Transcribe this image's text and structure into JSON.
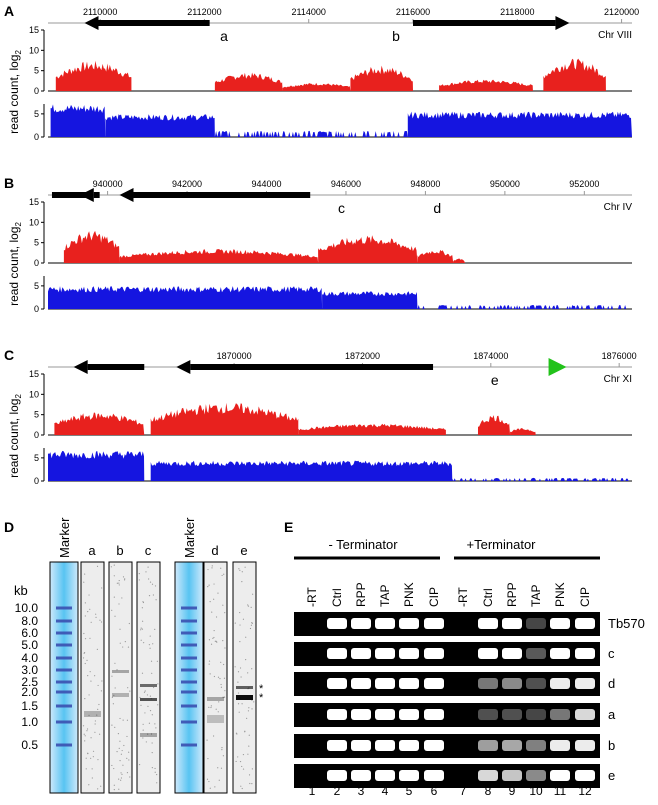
{
  "ylabel": "read count, log",
  "ylabel_sub": "2",
  "panels": [
    {
      "letter": "A",
      "chr": "Chr VIII",
      "ticks": [
        "2110000",
        "2112000",
        "2114000",
        "2116000",
        "2118000",
        "2120000"
      ],
      "xrange": [
        2109000,
        2120200
      ],
      "yticks": [
        "0",
        "5",
        "10",
        "15"
      ],
      "yticks_blue": [
        "0",
        "5"
      ],
      "peaks": [
        {
          "label": "a",
          "x": 2112300
        },
        {
          "label": "b",
          "x": 2115600
        }
      ],
      "genes": [
        {
          "from": 2112100,
          "to": 2109700,
          "dir": "left"
        },
        {
          "from": 2116000,
          "to": 2119000,
          "dir": "right"
        }
      ],
      "red_segments": [
        [
          2109150,
          2110600,
          6.5
        ],
        [
          2112200,
          2113500,
          4
        ],
        [
          2113500,
          2114800,
          1.8
        ],
        [
          2114800,
          2116000,
          5.5
        ],
        [
          2116500,
          2118300,
          2.5
        ],
        [
          2118500,
          2119700,
          7
        ]
      ],
      "blue_segments": [
        [
          2109050,
          2110100,
          6.5
        ],
        [
          2110100,
          2112200,
          4.5
        ],
        [
          2112200,
          2115900,
          1.2
        ],
        [
          2115900,
          2120200,
          5
        ]
      ]
    },
    {
      "letter": "B",
      "chr": "Chr IV",
      "ticks": [
        "940000",
        "942000",
        "944000",
        "946000",
        "948000",
        "950000",
        "952000"
      ],
      "xrange": [
        938500,
        953200
      ],
      "yticks": [
        "0",
        "5",
        "10",
        "15"
      ],
      "yticks_blue": [
        "0",
        "5"
      ],
      "peaks": [
        {
          "label": "c",
          "x": 945800
        },
        {
          "label": "d",
          "x": 948200
        }
      ],
      "genes": [
        {
          "from": 939500,
          "to": 938600,
          "dir": "none"
        },
        {
          "from": 939800,
          "to": 939300,
          "dir": "left"
        },
        {
          "from": 945100,
          "to": 940300,
          "dir": "left"
        }
      ],
      "red_segments": [
        [
          938900,
          940300,
          7
        ],
        [
          940300,
          945300,
          3
        ],
        [
          945300,
          947800,
          6
        ],
        [
          947800,
          948700,
          3
        ],
        [
          948700,
          949000,
          1
        ]
      ],
      "blue_segments": [
        [
          938500,
          945400,
          4.5
        ],
        [
          945400,
          947800,
          3.5
        ],
        [
          947800,
          953200,
          0.8
        ]
      ]
    },
    {
      "letter": "C",
      "chr": "Chr XI",
      "ticks": [
        "1870000",
        "1872000",
        "1874000",
        "1876000"
      ],
      "xrange": [
        1867100,
        1876200
      ],
      "yticks": [
        "0",
        "5",
        "10",
        "15"
      ],
      "yticks_blue": [
        "0",
        "5"
      ],
      "peaks": [
        {
          "label": "e",
          "x": 1874000
        }
      ],
      "genes": [
        {
          "from": 1868600,
          "to": 1867500,
          "dir": "left"
        },
        {
          "from": 1873100,
          "to": 1869100,
          "dir": "left"
        },
        {
          "from": 1874900,
          "to": 1875200,
          "dir": "right-green"
        }
      ],
      "red_segments": [
        [
          1867200,
          1868600,
          5
        ],
        [
          1868700,
          1871000,
          7
        ],
        [
          1871000,
          1873300,
          2.5
        ],
        [
          1873800,
          1874300,
          4.5
        ],
        [
          1874300,
          1874700,
          1.5
        ]
      ],
      "blue_segments": [
        [
          1867100,
          1868600,
          6
        ],
        [
          1868700,
          1873400,
          4
        ],
        [
          1873400,
          1876200,
          0.6
        ]
      ]
    }
  ],
  "panelD": {
    "letter": "D",
    "unit": "kb",
    "sizes": [
      "10.0",
      "8.0",
      "6.0",
      "5.0",
      "4.0",
      "3.0",
      "2.5",
      "2.0",
      "1.5",
      "1.0",
      "0.5"
    ],
    "marker_label": "Marker",
    "lanes_left": [
      "a",
      "b",
      "c"
    ],
    "lanes_right": [
      "d",
      "e"
    ],
    "asterisks": [
      "*",
      "*"
    ]
  },
  "panelE": {
    "letter": "E",
    "group1": "- Terminator",
    "group2": "+Terminator",
    "lanes": [
      "-RT",
      "Ctrl",
      "RPP",
      "TAP",
      "PNK",
      "CIP",
      "-RT",
      "Ctrl",
      "RPP",
      "TAP",
      "PNK",
      "CIP"
    ],
    "numbers": [
      "1",
      "2",
      "3",
      "4",
      "5",
      "6",
      "7",
      "8",
      "9",
      "10",
      "11",
      "12"
    ],
    "rows": [
      "Tb570",
      "c",
      "d",
      "a",
      "b",
      "e"
    ],
    "intensity": [
      [
        0,
        1,
        1,
        1,
        1,
        1,
        0,
        1,
        1,
        0.05,
        1,
        1
      ],
      [
        0,
        1,
        1,
        1,
        1,
        1,
        0,
        1,
        1,
        0.15,
        1,
        1
      ],
      [
        0,
        1,
        1,
        1,
        1,
        1,
        0,
        0.3,
        0.4,
        0.1,
        0.9,
        0.9
      ],
      [
        0,
        1,
        1,
        1,
        1,
        1,
        0,
        0.1,
        0.1,
        0.05,
        0.3,
        0.8
      ],
      [
        0,
        1,
        1,
        1,
        1,
        1,
        0,
        0.5,
        0.55,
        0.35,
        0.9,
        0.9
      ],
      [
        0,
        1,
        1,
        1,
        1,
        1,
        0,
        0.8,
        0.7,
        0.4,
        1,
        1
      ]
    ]
  }
}
